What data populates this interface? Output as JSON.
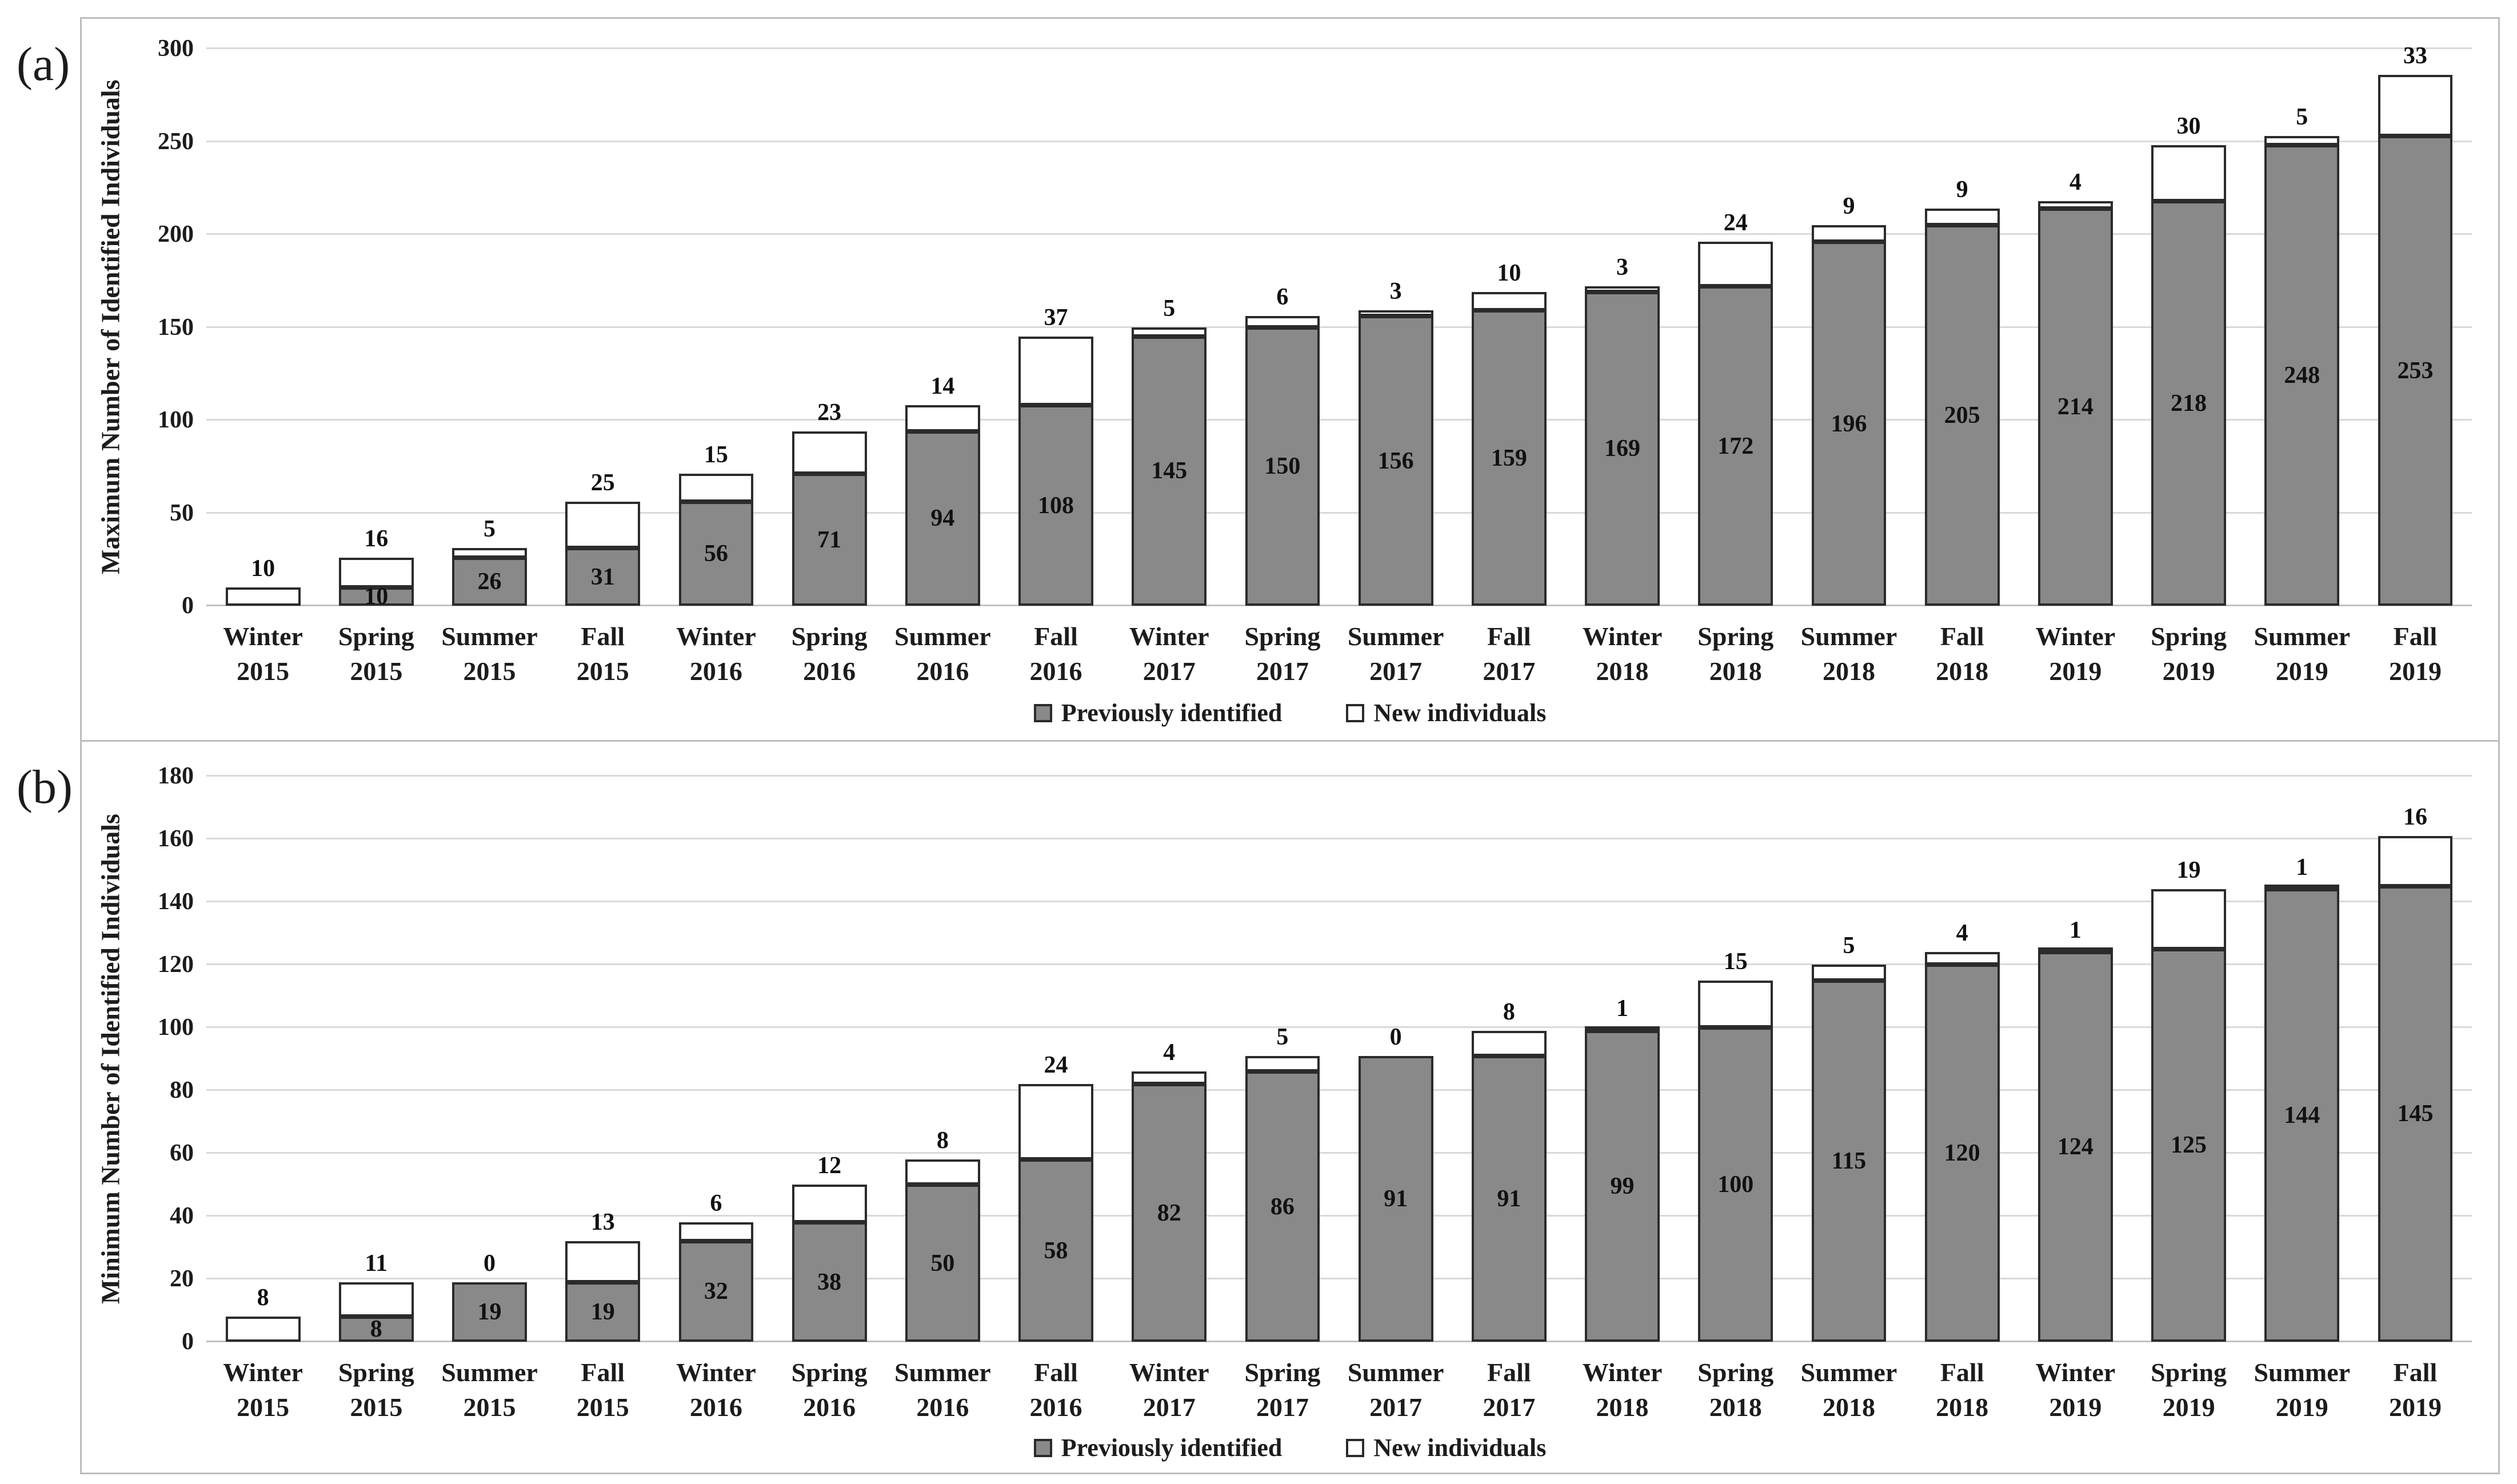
{
  "figure": {
    "background": "#ffffff",
    "panel_border_color": "#bdbdbd"
  },
  "colors": {
    "previously_identified_fill": "#898989",
    "new_individuals_fill": "#ffffff",
    "bar_border": "#2b2b2b",
    "gridline": "#d9d9d9",
    "axis_line": "#c2c2c2",
    "text": "#1c1c1c"
  },
  "legend": {
    "items": [
      {
        "label": "Previously identified",
        "swatch": "gray"
      },
      {
        "label": "New individuals",
        "swatch": "white"
      }
    ]
  },
  "chart_data": [
    {
      "type": "bar",
      "stacked": true,
      "panel_label": "(a)",
      "ylabel": "Maximum Number of Identified Individuals",
      "xlabel": "",
      "ylim": [
        0,
        300
      ],
      "yticks": [
        0,
        50,
        100,
        150,
        200,
        250,
        300
      ],
      "grid": true,
      "legend_position": "bottom",
      "categories": [
        "Winter 2015",
        "Spring 2015",
        "Summer 2015",
        "Fall 2015",
        "Winter 2016",
        "Spring 2016",
        "Summer 2016",
        "Fall 2016",
        "Winter 2017",
        "Spring 2017",
        "Summer 2017",
        "Fall 2017",
        "Winter 2018",
        "Spring 2018",
        "Summer 2018",
        "Fall 2018",
        "Winter 2019",
        "Spring 2019",
        "Summer 2019",
        "Fall 2019"
      ],
      "series": [
        {
          "name": "Previously identified",
          "values": [
            0,
            10,
            26,
            31,
            56,
            71,
            94,
            108,
            145,
            150,
            156,
            159,
            169,
            172,
            196,
            205,
            214,
            218,
            248,
            253
          ]
        },
        {
          "name": "New individuals",
          "values": [
            10,
            16,
            5,
            25,
            15,
            23,
            14,
            37,
            5,
            6,
            3,
            10,
            3,
            24,
            9,
            9,
            4,
            30,
            5,
            33
          ]
        }
      ]
    },
    {
      "type": "bar",
      "stacked": true,
      "panel_label": "(b)",
      "ylabel": "Minimum Number of Identified Individuals",
      "xlabel": "",
      "ylim": [
        0,
        180
      ],
      "yticks": [
        0,
        20,
        40,
        60,
        80,
        100,
        120,
        140,
        160,
        180
      ],
      "grid": true,
      "legend_position": "bottom",
      "categories": [
        "Winter 2015",
        "Spring 2015",
        "Summer 2015",
        "Fall 2015",
        "Winter 2016",
        "Spring 2016",
        "Summer 2016",
        "Fall 2016",
        "Winter 2017",
        "Spring 2017",
        "Summer 2017",
        "Fall 2017",
        "Winter 2018",
        "Spring 2018",
        "Summer 2018",
        "Fall 2018",
        "Winter 2019",
        "Spring 2019",
        "Summer 2019",
        "Fall 2019"
      ],
      "series": [
        {
          "name": "Previously identified",
          "values": [
            0,
            8,
            19,
            19,
            32,
            38,
            50,
            58,
            82,
            86,
            91,
            91,
            99,
            100,
            115,
            120,
            124,
            125,
            144,
            145
          ]
        },
        {
          "name": "New individuals",
          "values": [
            8,
            11,
            0,
            13,
            6,
            12,
            8,
            24,
            4,
            5,
            0,
            8,
            1,
            15,
            5,
            4,
            1,
            19,
            1,
            16
          ]
        }
      ]
    }
  ]
}
